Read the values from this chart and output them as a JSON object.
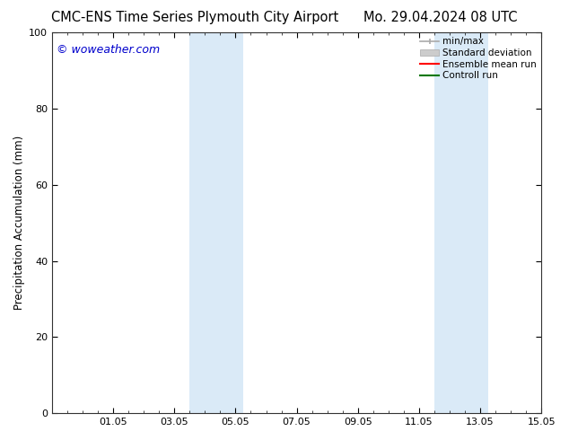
{
  "title_left": "CMC-ENS Time Series Plymouth City Airport",
  "title_right": "Mo. 29.04.2024 08 UTC",
  "ylabel": "Precipitation Accumulation (mm)",
  "watermark": "© woweather.com",
  "watermark_color": "#0000cc",
  "ylim": [
    0,
    100
  ],
  "yticks": [
    0,
    20,
    40,
    60,
    80,
    100
  ],
  "xtick_labels": [
    "01.05",
    "03.05",
    "05.05",
    "07.05",
    "09.05",
    "11.05",
    "13.05",
    "15.05"
  ],
  "xtick_positions": [
    2.0,
    4.0,
    6.0,
    8.0,
    10.0,
    12.0,
    14.0,
    16.0
  ],
  "xlim": [
    0,
    16.0
  ],
  "shaded_regions": [
    {
      "start": 4.5,
      "end": 6.25,
      "color": "#daeaf7"
    },
    {
      "start": 12.5,
      "end": 14.25,
      "color": "#daeaf7"
    }
  ],
  "legend_entries": [
    {
      "label": "min/max",
      "color": "#aaaaaa",
      "style": "minmax"
    },
    {
      "label": "Standard deviation",
      "color": "#cccccc",
      "style": "rect"
    },
    {
      "label": "Ensemble mean run",
      "color": "#ff0000",
      "style": "line"
    },
    {
      "label": "Controll run",
      "color": "#007700",
      "style": "line"
    }
  ],
  "background_color": "#ffffff",
  "title_fontsize": 10.5,
  "ylabel_fontsize": 8.5,
  "tick_fontsize": 8,
  "watermark_fontsize": 9,
  "legend_fontsize": 7.5
}
